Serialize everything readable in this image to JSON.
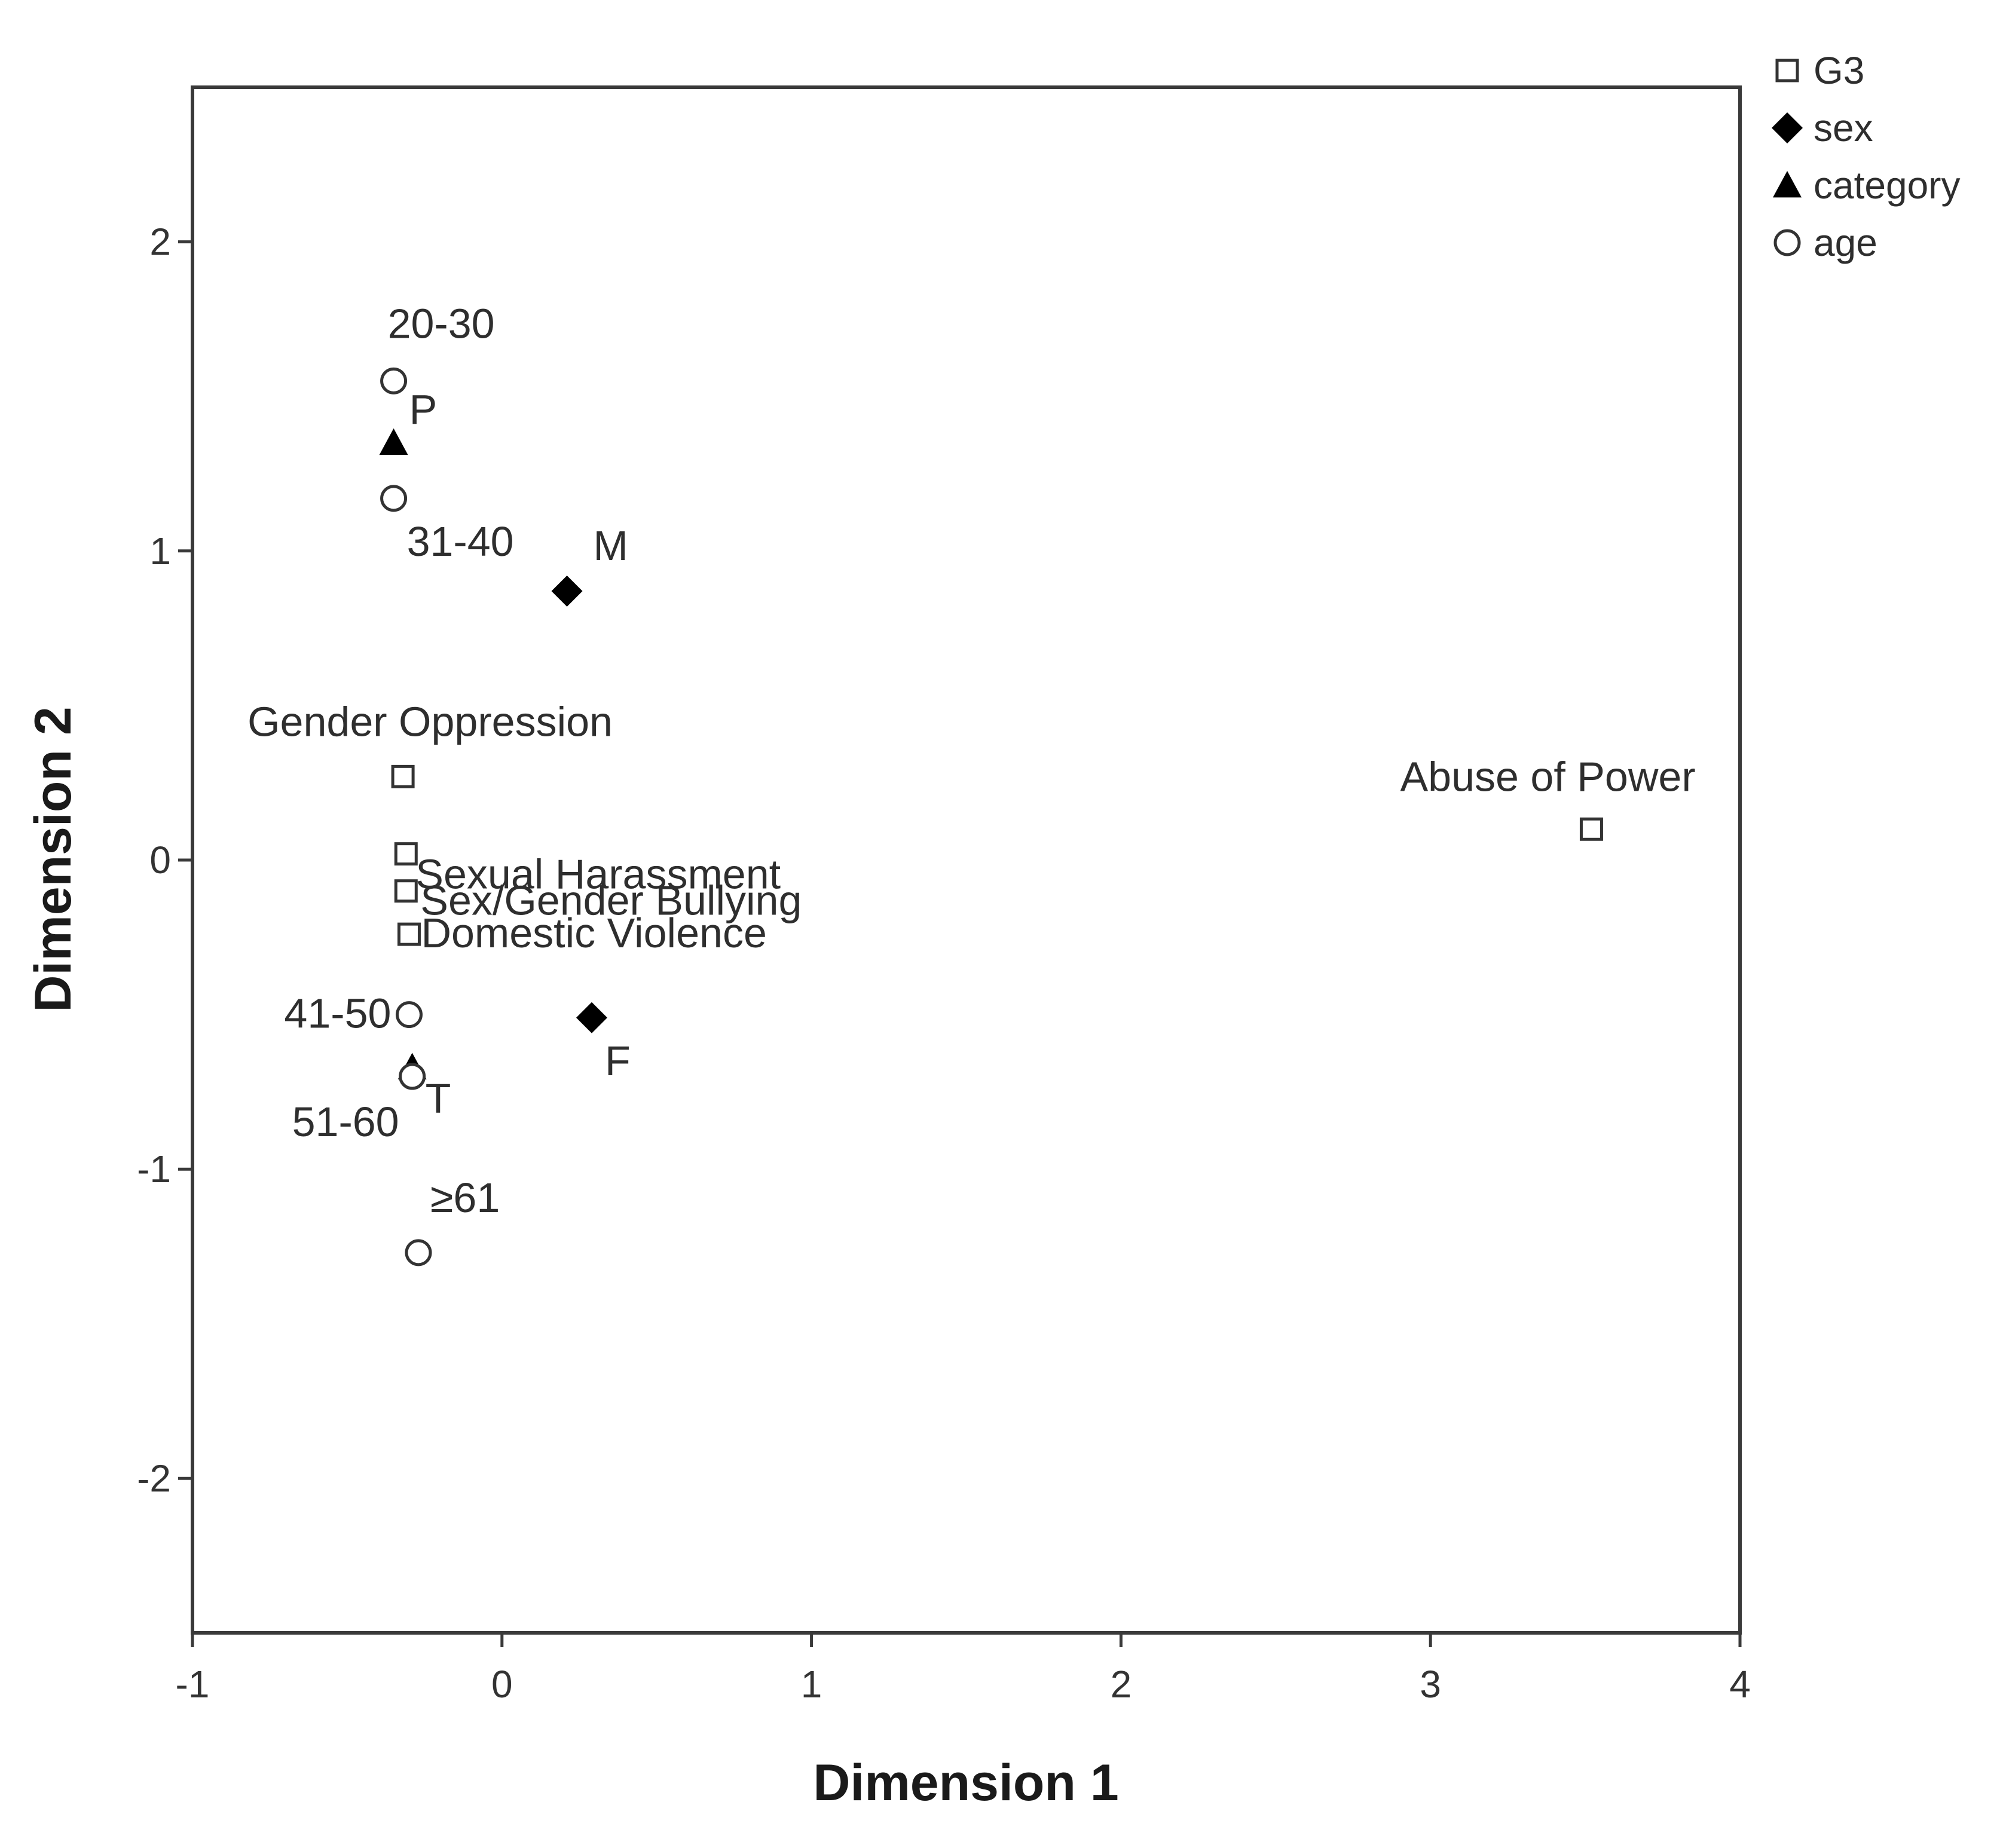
{
  "chart_data": {
    "type": "scatter",
    "xlabel": "Dimension 1",
    "ylabel": "Dimension 2",
    "xlim": [
      -1,
      4
    ],
    "ylim": [
      -2.5,
      2.5
    ],
    "xticks": [
      "-1",
      "0",
      "1",
      "2",
      "3",
      "4"
    ],
    "yticks": [
      "2",
      "1",
      "0",
      "-1",
      "-2"
    ],
    "grid": false,
    "legend_position": "top-right, outside plot",
    "series": [
      {
        "name": "G3",
        "marker": "open-square",
        "points": [
          {
            "label": "Gender Oppression",
            "x": -0.32,
            "y": 0.27
          },
          {
            "label": "Sexual Harassment",
            "x": -0.31,
            "y": 0.02
          },
          {
            "label": "Sex/Gender Bullying",
            "x": -0.31,
            "y": -0.1
          },
          {
            "label": "Domestic Violence",
            "x": -0.3,
            "y": -0.24
          },
          {
            "label": "Abuse of Power",
            "x": 3.52,
            "y": 0.1
          }
        ]
      },
      {
        "name": "sex",
        "marker": "filled-diamond",
        "points": [
          {
            "label": "M",
            "x": 0.21,
            "y": 0.87
          },
          {
            "label": "F",
            "x": 0.29,
            "y": -0.51
          }
        ]
      },
      {
        "name": "category",
        "marker": "filled-triangle",
        "points": [
          {
            "label": "P",
            "x": -0.35,
            "y": 1.35
          },
          {
            "label": "T",
            "x": -0.29,
            "y": -0.67
          }
        ]
      },
      {
        "name": "age",
        "marker": "open-circle",
        "points": [
          {
            "label": "20-30",
            "x": -0.35,
            "y": 1.55
          },
          {
            "label": "31-40",
            "x": -0.35,
            "y": 1.17
          },
          {
            "label": "41-50",
            "x": -0.3,
            "y": -0.5
          },
          {
            "label": "51-60",
            "x": -0.29,
            "y": -0.7
          },
          {
            "label": "≥61",
            "x": -0.27,
            "y": -1.27
          }
        ]
      }
    ]
  }
}
